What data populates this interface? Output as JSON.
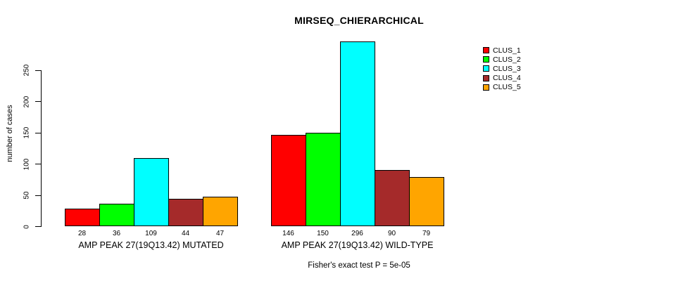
{
  "chart_data": {
    "type": "bar",
    "title": "MIRSEQ_CHIERARCHICAL",
    "ylabel": "number of cases",
    "footer": "Fisher's exact test P = 5e-05",
    "yticks": [
      0,
      50,
      100,
      150,
      200,
      250
    ],
    "ylim": [
      0,
      300
    ],
    "grid": false,
    "legend_position": "right",
    "series": [
      {
        "name": "CLUS_1",
        "color": "#FF0000"
      },
      {
        "name": "CLUS_2",
        "color": "#00FF00"
      },
      {
        "name": "CLUS_3",
        "color": "#00FFFF"
      },
      {
        "name": "CLUS_4",
        "color": "#A52A2A"
      },
      {
        "name": "CLUS_5",
        "color": "#FFA500"
      }
    ],
    "groups": [
      {
        "label": "AMP PEAK 27(19Q13.42) MUTATED",
        "values": [
          28,
          36,
          109,
          44,
          47
        ]
      },
      {
        "label": "AMP PEAK 27(19Q13.42) WILD-TYPE",
        "values": [
          146,
          150,
          296,
          90,
          79
        ]
      }
    ]
  }
}
